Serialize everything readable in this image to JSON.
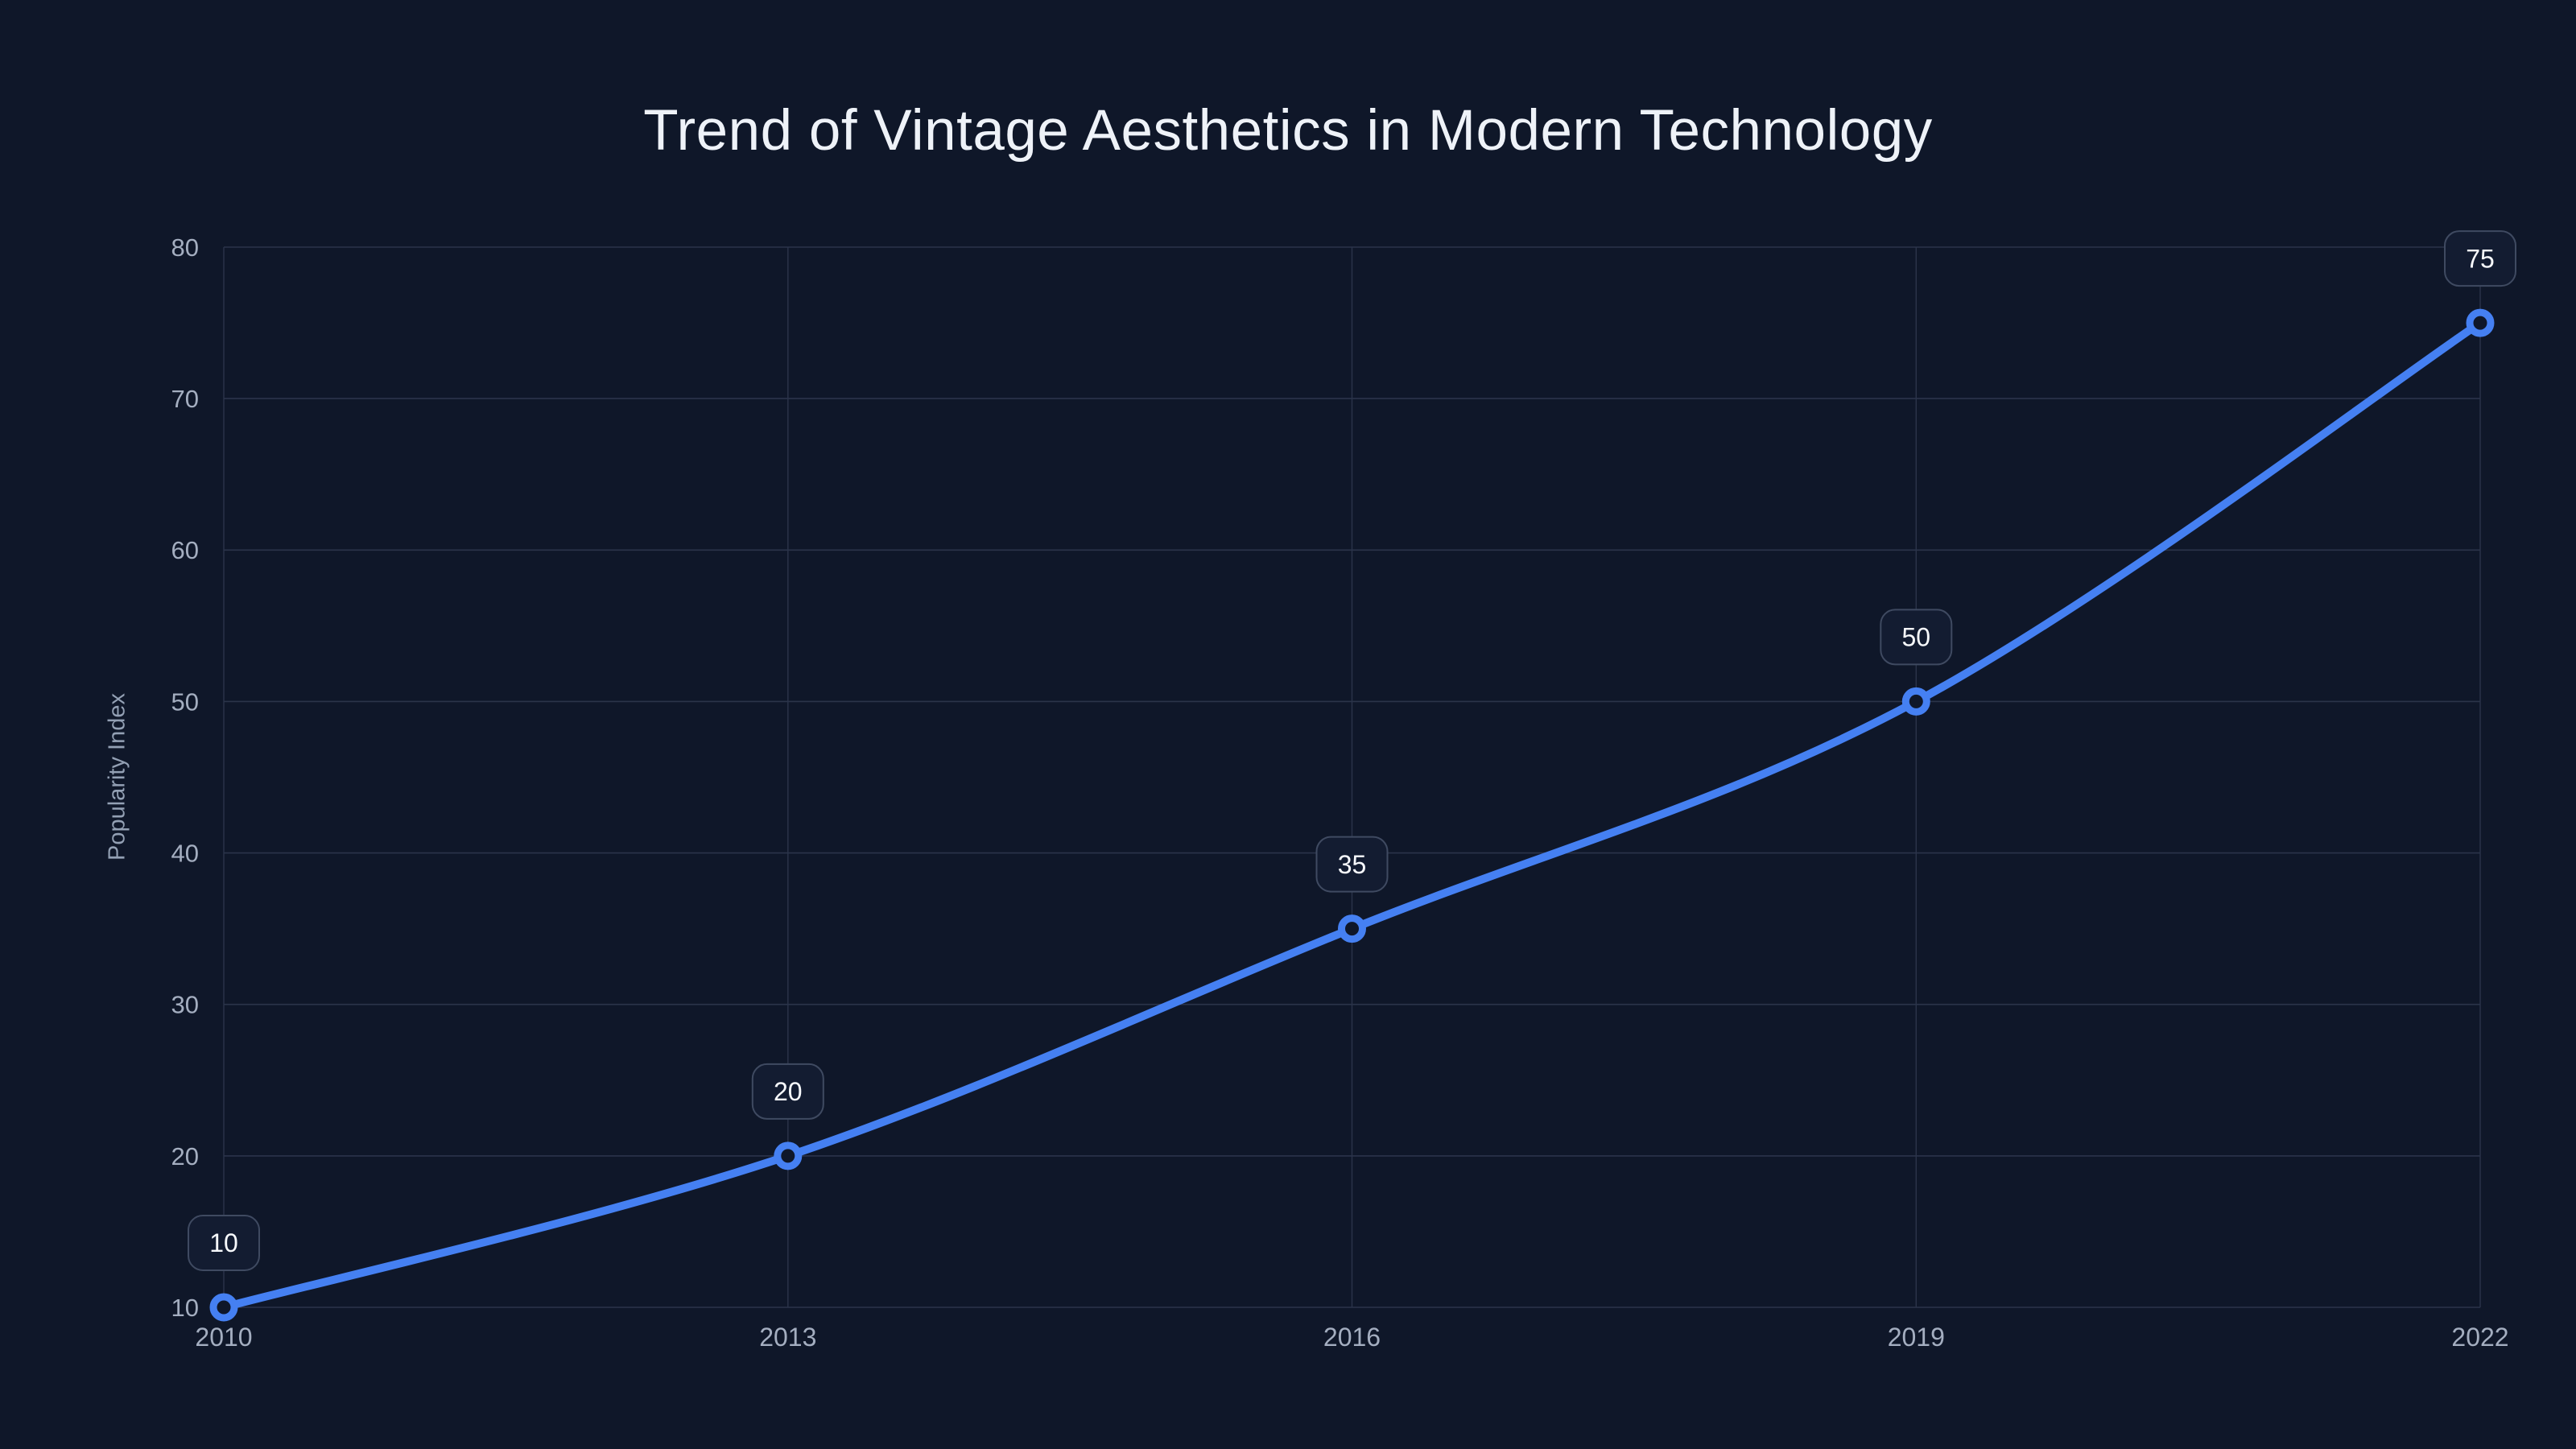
{
  "chart_data": {
    "type": "line",
    "title": "Trend of Vintage Aesthetics in Modern Technology",
    "xlabel": "",
    "ylabel": "Popularity Index",
    "x": [
      2010,
      2013,
      2016,
      2019,
      2022
    ],
    "series": [
      {
        "name": "Popularity Index",
        "values": [
          10,
          20,
          35,
          50,
          75
        ]
      }
    ],
    "point_labels": [
      "10",
      "20",
      "35",
      "50",
      "75"
    ],
    "xticks": [
      2010,
      2013,
      2016,
      2019,
      2022
    ],
    "yticks": [
      10,
      20,
      30,
      40,
      50,
      60,
      70,
      80
    ],
    "xlim": [
      2010,
      2022
    ],
    "ylim": [
      10,
      80
    ],
    "grid": true,
    "legend": false,
    "smooth": true,
    "marker": "open-circle"
  },
  "colors": {
    "background": "#0f1729",
    "grid": "#2b344a",
    "line": "#4580f2",
    "marker_fill": "#0f1729",
    "tick_label": "#a4aec0",
    "title": "#eef2f8",
    "axis_title": "#93a0b4",
    "label_box_fill": "#131c31",
    "label_box_border": "#3f4a61",
    "label_text": "#f7f9fc"
  }
}
